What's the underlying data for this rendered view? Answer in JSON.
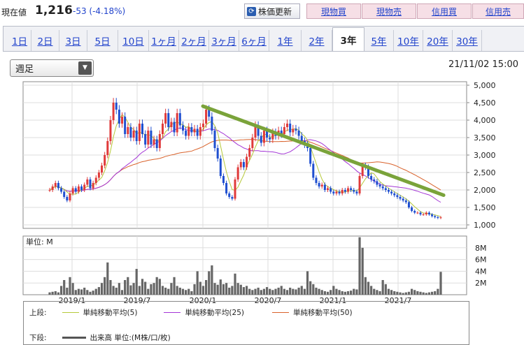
{
  "header": {
    "price_label": "現在値",
    "price_value": "1,216",
    "price_change": "-53 (-4.18%)",
    "update_button": "株価更新",
    "trade_buttons": [
      "現物買",
      "現物売",
      "信用買",
      "信用売"
    ]
  },
  "tabs": [
    "1日",
    "2日",
    "3日",
    "5日",
    "10日",
    "1ヶ月",
    "2ヶ月",
    "3ヶ月",
    "6ヶ月",
    "1年",
    "2年",
    "3年",
    "5年",
    "10年",
    "20年",
    "30年"
  ],
  "active_tab": "3年",
  "period_select": "週足",
  "timestamp": "21/11/02 15:00",
  "volume_unit": "単位: M",
  "legend": {
    "upper_label": "上段:",
    "lower_label": "下段:",
    "ma5": "単純移動平均(5)",
    "ma25": "単純移動平均(25)",
    "ma50": "単純移動平均(50)",
    "volume": "出来高 単位:(M株/口/枚)"
  },
  "colors": {
    "up": "#e03a3a",
    "down": "#1f4fd0",
    "ma5": "#b6c93a",
    "ma25": "#a436d6",
    "ma50": "#d9622b",
    "trend": "#7aa33a"
  },
  "chart_data": {
    "type": "candlestick",
    "x_ticks": [
      "2019/1",
      "2019/7",
      "2020/1",
      "2020/7",
      "2021/1",
      "2021/7"
    ],
    "y_ticks": [
      1000,
      1500,
      2000,
      2500,
      3000,
      3500,
      4000,
      4500,
      5000
    ],
    "y_tick_labels": [
      "1,000",
      "1,500",
      "2,000",
      "2,500",
      "3,000",
      "3,500",
      "4,000",
      "4,500",
      "5,000"
    ],
    "ylim": [
      900,
      5100
    ],
    "volume_ticks": [
      "2M",
      "4M",
      "6M",
      "8M"
    ],
    "volume_ylim": [
      0,
      10
    ],
    "close": [
      2000,
      2100,
      2200,
      2050,
      1950,
      1800,
      1700,
      1900,
      2050,
      1950,
      2100,
      2000,
      2150,
      2300,
      2050,
      2200,
      2350,
      2500,
      2700,
      3000,
      3400,
      4000,
      4500,
      4300,
      3900,
      4100,
      3600,
      3800,
      3500,
      3700,
      3400,
      3900,
      3600,
      3300,
      3700,
      3300,
      3450,
      3200,
      3600,
      3900,
      4200,
      3800,
      3950,
      3650,
      4200,
      3850,
      3700,
      3550,
      3800,
      3650,
      3750,
      3550,
      3800,
      3900,
      4300,
      4100,
      3700,
      3200,
      2900,
      2400,
      2200,
      1900,
      1800,
      1750,
      2300,
      2650,
      2800,
      2650,
      2950,
      3200,
      3500,
      3850,
      3550,
      3350,
      3700,
      3500,
      3450,
      3650,
      3550,
      3700,
      3600,
      3800,
      3900,
      3650,
      3750,
      3700,
      3550,
      3400,
      3300,
      3200,
      2750,
      2350,
      2200,
      2100,
      2150,
      2000,
      2050,
      1950,
      1900,
      1950,
      1900,
      2000,
      1950,
      2050,
      2000,
      1950,
      1900,
      2400,
      2700,
      2650,
      2400,
      2300,
      2250,
      2150,
      2100,
      2050,
      2000,
      1950,
      1900,
      1850,
      1800,
      1750,
      1700,
      1650,
      1500,
      1400,
      1350,
      1350,
      1300,
      1300,
      1350,
      1300,
      1250,
      1220,
      1200,
      1216
    ],
    "volume": [
      0.4,
      0.5,
      0.6,
      0.4,
      1.5,
      2.5,
      1.2,
      3.0,
      2.0,
      0.8,
      1.0,
      0.9,
      1.2,
      0.8,
      0.5,
      0.7,
      1.0,
      1.3,
      2.0,
      3.0,
      5.5,
      2.5,
      1.5,
      1.2,
      2.0,
      0.8,
      2.5,
      3.0,
      1.6,
      2.0,
      4.4,
      1.5,
      2.7,
      2.2,
      1.0,
      1.8,
      2.0,
      3.0,
      2.7,
      1.5,
      1.2,
      1.0,
      2.0,
      3.0,
      1.5,
      1.2,
      1.0,
      0.8,
      1.0,
      0.6,
      1.8,
      4.0,
      2.2,
      1.5,
      2.5,
      4.0,
      5.0,
      2.0,
      1.7,
      2.6,
      1.8,
      2.0,
      1.2,
      1.5,
      3.6,
      2.0,
      1.7,
      1.3,
      1.5,
      1.0,
      0.8,
      1.0,
      1.2,
      0.8,
      1.0,
      1.3,
      1.0,
      0.8,
      1.0,
      1.2,
      1.5,
      1.0,
      0.8,
      1.2,
      1.0,
      0.9,
      1.2,
      1.5,
      1.0,
      4.0,
      2.3,
      1.8,
      1.2,
      1.0,
      0.8,
      0.6,
      0.5,
      0.8,
      1.5,
      1.0,
      0.8,
      0.6,
      0.5,
      0.6,
      0.7,
      1.0,
      0.9,
      9.8,
      8.0,
      3.0,
      2.2,
      1.5,
      1.0,
      0.8,
      0.6,
      2.5,
      1.8,
      1.0,
      0.8,
      0.6,
      0.5,
      0.4,
      0.3,
      0.4,
      0.5,
      1.0,
      0.8,
      0.6,
      0.5,
      0.4,
      0.3,
      0.4,
      0.5,
      0.6,
      1.0,
      3.9
    ],
    "trendline": {
      "from": [
        2020,
        4400
      ],
      "to": [
        2021.85,
        1850
      ]
    }
  }
}
